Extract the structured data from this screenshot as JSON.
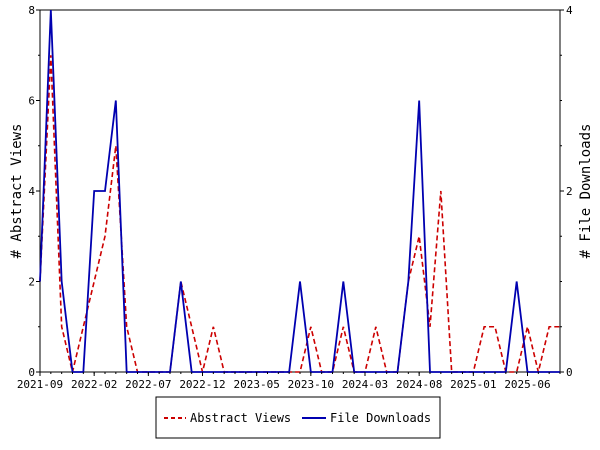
{
  "chart_data": {
    "type": "line",
    "x_ticks": [
      "2021-09",
      "2022-02",
      "2022-07",
      "2022-12",
      "2023-05",
      "2023-10",
      "2024-03",
      "2024-08",
      "2025-01",
      "2025-06"
    ],
    "ylabel_left": "# Abstract Views",
    "ylabel_right": "# File Downloads",
    "y_left_range": [
      0,
      8
    ],
    "y_left_ticks": [
      "0",
      "2",
      "4",
      "6",
      "8"
    ],
    "y_right_range": [
      0,
      4
    ],
    "y_right_ticks": [
      "0",
      "2",
      "4"
    ],
    "grid": false,
    "legend_position": "bottom",
    "series": [
      {
        "name": "Abstract Views",
        "axis": "left",
        "color": "#cc0000",
        "style": "dashed",
        "x": [
          0,
          1,
          2,
          3,
          4,
          5,
          6,
          7,
          8,
          9,
          10,
          11,
          12,
          13,
          14,
          15,
          16,
          17,
          18,
          19,
          20,
          21,
          22,
          23,
          24,
          25,
          26,
          27,
          28,
          29,
          30,
          31,
          32,
          33,
          34,
          35,
          36,
          37,
          38,
          39,
          40,
          41,
          42,
          43,
          44,
          45,
          46,
          47,
          48
        ],
        "values": [
          2,
          7,
          1,
          0,
          1,
          2,
          3,
          5,
          1,
          0,
          0,
          0,
          0,
          2,
          1,
          0,
          1,
          0,
          0,
          0,
          0,
          0,
          0,
          0,
          0,
          1,
          0,
          0,
          1,
          0,
          0,
          1,
          0,
          0,
          2,
          3,
          1,
          4,
          0,
          0,
          0,
          1,
          1,
          0,
          0,
          1,
          0,
          1,
          1
        ]
      },
      {
        "name": "File Downloads",
        "axis": "right",
        "color": "#0000b0",
        "style": "solid",
        "x": [
          0,
          1,
          2,
          3,
          4,
          5,
          5.5,
          6,
          7,
          8,
          9,
          10,
          11,
          12,
          13,
          14,
          15,
          16,
          17,
          18,
          19,
          20,
          21,
          22,
          23,
          24,
          25,
          26,
          27,
          28,
          29,
          30,
          31,
          32,
          33,
          34,
          35,
          36,
          37,
          38,
          39,
          40,
          41,
          42,
          43,
          44,
          45,
          46,
          47,
          48
        ],
        "values": [
          1,
          4,
          1,
          0,
          0,
          2,
          2,
          2,
          3,
          0,
          0,
          0,
          0,
          0,
          1,
          0,
          0,
          0,
          0,
          0,
          0,
          0,
          0,
          0,
          0,
          1,
          0,
          0,
          0,
          1,
          0,
          0,
          0,
          0,
          0,
          1,
          3,
          0,
          0,
          0,
          0,
          0,
          0,
          0,
          0,
          1,
          0,
          0,
          0,
          0
        ]
      }
    ]
  }
}
